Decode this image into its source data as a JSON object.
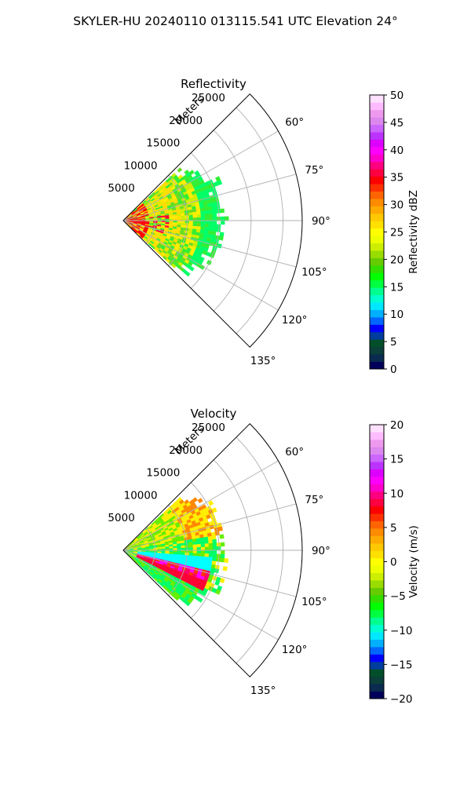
{
  "title": "SKYLER-HU  20240110  013115.541 UTC Elevation 24°",
  "colors": {
    "grid": "#b0b0b0",
    "axis": "#000000",
    "background": "#ffffff"
  },
  "chart_data": [
    {
      "type": "polar-ppi",
      "title": "Reflectivity",
      "radial_label": "Meters",
      "radial_ticks": [
        "5000",
        "10000",
        "15000",
        "20000",
        "25000"
      ],
      "radial_tick_values": [
        5000,
        10000,
        15000,
        20000,
        25000
      ],
      "rlim": [
        0,
        28000
      ],
      "azimuth_range_deg": [
        45,
        135
      ],
      "azimuth_ticks": [
        "60°",
        "75°",
        "90°",
        "105°",
        "120°",
        "135°"
      ],
      "azimuth_tick_values": [
        60,
        75,
        90,
        105,
        120,
        135
      ],
      "grid": true,
      "colorbar": {
        "label": "Reflectivity dBZ",
        "ticks": [
          "0",
          "5",
          "10",
          "15",
          "20",
          "25",
          "30",
          "35",
          "40",
          "45",
          "50"
        ],
        "range": [
          0,
          50
        ],
        "colors": [
          "#00005a",
          "#0a2a50",
          "#0b3f3a",
          "#024f2a",
          "#003d9e",
          "#0000ff",
          "#0066ff",
          "#00b0ff",
          "#00e8ff",
          "#00ffd0",
          "#00ff90",
          "#00ff40",
          "#00ff00",
          "#33dd00",
          "#66cc00",
          "#99dd00",
          "#ccee00",
          "#eeff00",
          "#ffff00",
          "#ffe000",
          "#ffc800",
          "#ffaa00",
          "#ff8c00",
          "#ff6400",
          "#ff3000",
          "#ff0000",
          "#ff0040",
          "#ff0080",
          "#ff00cc",
          "#ff00ff",
          "#dd00ff",
          "#bb33ff",
          "#cc66ff",
          "#dd88ee",
          "#ee99ee",
          "#ffbbff",
          "#ffe0ff"
        ]
      },
      "field": {
        "max_range": 16500,
        "core_color": "#ff0000",
        "dominant_colors": [
          "#66dd22",
          "#ccee00",
          "#ffee00",
          "#33ee33",
          "#00ff66",
          "#ff8800",
          "#ff0033",
          "#99ee00"
        ]
      }
    },
    {
      "type": "polar-ppi",
      "title": "Velocity",
      "radial_label": "Meters",
      "radial_ticks": [
        "5000",
        "10000",
        "15000",
        "20000",
        "25000"
      ],
      "radial_tick_values": [
        5000,
        10000,
        15000,
        20000,
        25000
      ],
      "rlim": [
        0,
        28000
      ],
      "azimuth_range_deg": [
        45,
        135
      ],
      "azimuth_ticks": [
        "60°",
        "75°",
        "90°",
        "105°",
        "120°",
        "135°"
      ],
      "azimuth_tick_values": [
        60,
        75,
        90,
        105,
        120,
        135
      ],
      "grid": true,
      "colorbar": {
        "label": "Velocity (m/s)",
        "ticks": [
          "−20",
          "−15",
          "−10",
          "−5",
          "0",
          "5",
          "10",
          "15",
          "20"
        ],
        "range": [
          -20,
          20
        ],
        "colors": [
          "#00005a",
          "#0a2a50",
          "#0b3f3a",
          "#024f2a",
          "#003d9e",
          "#0000ff",
          "#0066ff",
          "#00b0ff",
          "#00e8ff",
          "#00ffd0",
          "#00ff90",
          "#00ff40",
          "#00ff00",
          "#33dd00",
          "#66cc00",
          "#99dd00",
          "#ccee00",
          "#eeff00",
          "#ffff00",
          "#ffe000",
          "#ffc800",
          "#ffaa00",
          "#ff8c00",
          "#ff6400",
          "#ff3000",
          "#ff0000",
          "#ff0040",
          "#ff0080",
          "#ff00cc",
          "#ff00ff",
          "#dd00ff",
          "#bb33ff",
          "#cc66ff",
          "#dd88ee",
          "#ee99ee",
          "#ffbbff",
          "#ffe0ff"
        ]
      },
      "field": {
        "max_range": 16500,
        "band_colors": [
          "#ff00ff",
          "#ff0066",
          "#ff3300",
          "#00ffff",
          "#00ff66",
          "#66ee00",
          "#ffee00",
          "#ff8800"
        ]
      }
    }
  ]
}
